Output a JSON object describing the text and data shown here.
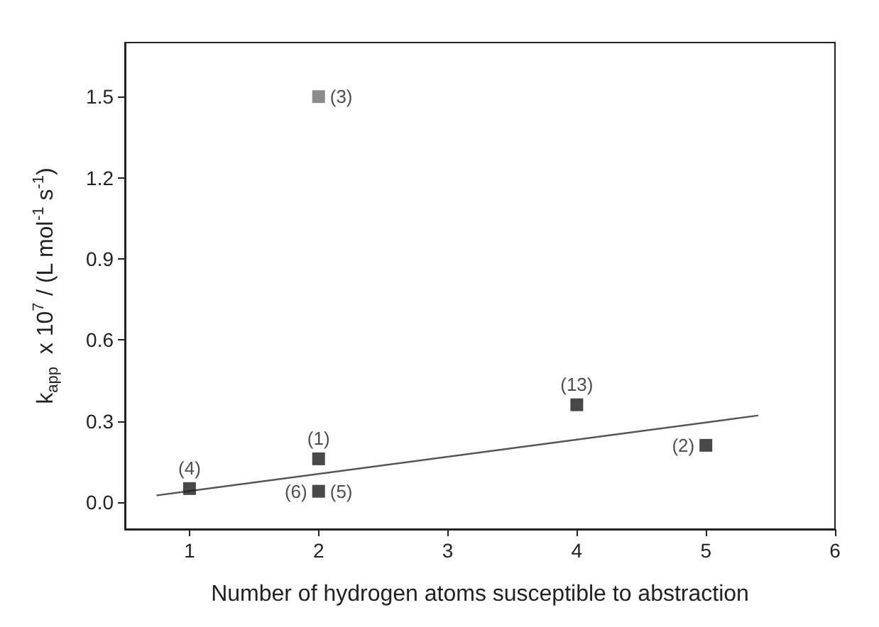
{
  "chart_data": {
    "type": "scatter",
    "xlabel": "Number of hydrogen atoms susceptible to abstraction",
    "ylabel": "k$_{app}$  x 10$^{7}$ / (L mol$^{-1}$ s$^{-1}$)",
    "xlim": [
      0.5,
      6
    ],
    "xticks": [
      1,
      2,
      3,
      4,
      5,
      6
    ],
    "ylim": [
      -0.1,
      1.7
    ],
    "yticks": [
      {
        "value": 0,
        "label": "0.0"
      },
      0.3,
      0.6,
      0.9,
      1.2,
      1.5
    ],
    "marker": "square",
    "grid": false,
    "series": [
      {
        "x": [
          1,
          2,
          2,
          2,
          4,
          5
        ],
        "values": [
          0.05,
          1.5,
          0.16,
          0.04,
          0.36,
          0.21
        ],
        "colors": [
          "#1a1a1a",
          "#6e6e6e",
          "#1a1a1a",
          "#1a1a1a",
          "#1a1a1a",
          "#1a1a1a"
        ]
      },
      {
        "type": "line",
        "x": [
          0.75,
          5.4
        ],
        "values": [
          0.025,
          0.32
        ],
        "color": "#555555",
        "line_style": "solid",
        "marker": "none"
      }
    ],
    "annotations": [
      {
        "text": "(4)",
        "x": 1,
        "y": 0.05
      },
      {
        "text": "(3)",
        "x": 2,
        "y": 1.5
      },
      {
        "text": "(1)",
        "x": 2,
        "y": 0.16
      },
      {
        "text": "(6)",
        "x": 2,
        "y": 0.04
      },
      {
        "text": "(5)",
        "x": 2,
        "y": 0.04
      },
      {
        "text": "(13)",
        "x": 4,
        "y": 0.36
      },
      {
        "text": "(2)",
        "x": 5,
        "y": 0.21
      }
    ]
  }
}
